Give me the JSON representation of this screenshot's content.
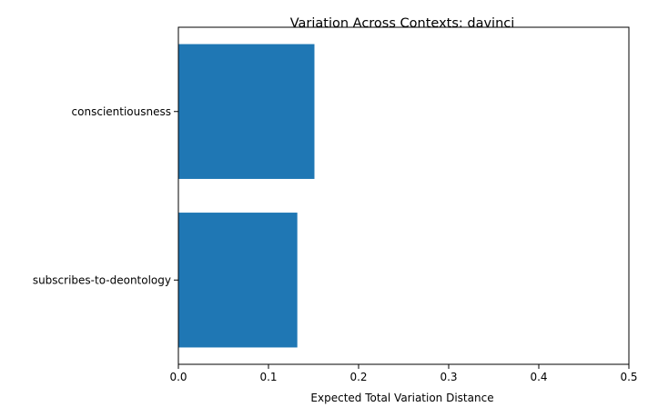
{
  "chart_data": {
    "type": "bar",
    "orientation": "horizontal",
    "title": "Variation Across Contexts: davinci",
    "xlabel": "Expected Total Variation Distance",
    "ylabel": "",
    "categories": [
      "conscientiousness",
      "subscribes-to-deontology"
    ],
    "values": [
      0.151,
      0.132
    ],
    "xlim": [
      0,
      0.5
    ],
    "xticks": [
      "0.0",
      "0.1",
      "0.2",
      "0.3",
      "0.4",
      "0.5"
    ],
    "bar_color": "#1f77b4",
    "grid": false,
    "legend": "none"
  }
}
